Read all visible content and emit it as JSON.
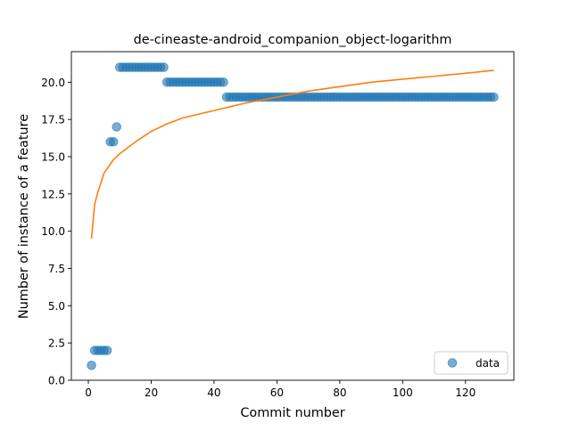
{
  "chart_data": {
    "type": "scatter",
    "title": "de-cineaste-android_companion_object-logarithm",
    "xlabel": "Commit number",
    "ylabel": "Number of instance of a feature",
    "xlim": [
      -5.4,
      135.4
    ],
    "ylim": [
      0,
      22.05
    ],
    "x_ticks": [
      0,
      20,
      40,
      60,
      80,
      100,
      120
    ],
    "x_tick_labels": [
      "0",
      "20",
      "40",
      "60",
      "80",
      "100",
      "120"
    ],
    "y_ticks": [
      0,
      2.5,
      5,
      7.5,
      10,
      12.5,
      15,
      17.5,
      20
    ],
    "y_tick_labels": [
      "0.0",
      "2.5",
      "5.0",
      "7.5",
      "10.0",
      "12.5",
      "15.0",
      "17.5",
      "20.0"
    ],
    "grid": false,
    "legend_position": "lower-right",
    "series": [
      {
        "name": "data",
        "kind": "scatter",
        "color": "#1f77b4",
        "points": [
          [
            1,
            1
          ],
          [
            2,
            2
          ],
          [
            3,
            2
          ],
          [
            4,
            2
          ],
          [
            5,
            2
          ],
          [
            6,
            2
          ],
          [
            7,
            16
          ],
          [
            8,
            16
          ],
          [
            9,
            17
          ],
          [
            10,
            21
          ],
          [
            11,
            21
          ],
          [
            12,
            21
          ],
          [
            13,
            21
          ],
          [
            14,
            21
          ],
          [
            15,
            21
          ],
          [
            16,
            21
          ],
          [
            17,
            21
          ],
          [
            18,
            21
          ],
          [
            19,
            21
          ],
          [
            20,
            21
          ],
          [
            21,
            21
          ],
          [
            22,
            21
          ],
          [
            23,
            21
          ],
          [
            24,
            21
          ],
          [
            25,
            20
          ],
          [
            26,
            20
          ],
          [
            27,
            20
          ],
          [
            28,
            20
          ],
          [
            29,
            20
          ],
          [
            30,
            20
          ],
          [
            31,
            20
          ],
          [
            32,
            20
          ],
          [
            33,
            20
          ],
          [
            34,
            20
          ],
          [
            35,
            20
          ],
          [
            36,
            20
          ],
          [
            37,
            20
          ],
          [
            38,
            20
          ],
          [
            39,
            20
          ],
          [
            40,
            20
          ],
          [
            41,
            20
          ],
          [
            42,
            20
          ],
          [
            43,
            20
          ],
          [
            44,
            19
          ],
          [
            45,
            19
          ],
          [
            46,
            19
          ],
          [
            47,
            19
          ],
          [
            48,
            19
          ],
          [
            49,
            19
          ],
          [
            50,
            19
          ],
          [
            51,
            19
          ],
          [
            52,
            19
          ],
          [
            53,
            19
          ],
          [
            54,
            19
          ],
          [
            55,
            19
          ],
          [
            56,
            19
          ],
          [
            57,
            19
          ],
          [
            58,
            19
          ],
          [
            59,
            19
          ],
          [
            60,
            19
          ],
          [
            61,
            19
          ],
          [
            62,
            19
          ],
          [
            63,
            19
          ],
          [
            64,
            19
          ],
          [
            65,
            19
          ],
          [
            66,
            19
          ],
          [
            67,
            19
          ],
          [
            68,
            19
          ],
          [
            69,
            19
          ],
          [
            70,
            19
          ],
          [
            71,
            19
          ],
          [
            72,
            19
          ],
          [
            73,
            19
          ],
          [
            74,
            19
          ],
          [
            75,
            19
          ],
          [
            76,
            19
          ],
          [
            77,
            19
          ],
          [
            78,
            19
          ],
          [
            79,
            19
          ],
          [
            80,
            19
          ],
          [
            81,
            19
          ],
          [
            82,
            19
          ],
          [
            83,
            19
          ],
          [
            84,
            19
          ],
          [
            85,
            19
          ],
          [
            86,
            19
          ],
          [
            87,
            19
          ],
          [
            88,
            19
          ],
          [
            89,
            19
          ],
          [
            90,
            19
          ],
          [
            91,
            19
          ],
          [
            92,
            19
          ],
          [
            93,
            19
          ],
          [
            94,
            19
          ],
          [
            95,
            19
          ],
          [
            96,
            19
          ],
          [
            97,
            19
          ],
          [
            98,
            19
          ],
          [
            99,
            19
          ],
          [
            100,
            19
          ],
          [
            101,
            19
          ],
          [
            102,
            19
          ],
          [
            103,
            19
          ],
          [
            104,
            19
          ],
          [
            105,
            19
          ],
          [
            106,
            19
          ],
          [
            107,
            19
          ],
          [
            108,
            19
          ],
          [
            109,
            19
          ],
          [
            110,
            19
          ],
          [
            111,
            19
          ],
          [
            112,
            19
          ],
          [
            113,
            19
          ],
          [
            114,
            19
          ],
          [
            115,
            19
          ],
          [
            116,
            19
          ],
          [
            117,
            19
          ],
          [
            118,
            19
          ],
          [
            119,
            19
          ],
          [
            120,
            19
          ],
          [
            121,
            19
          ],
          [
            122,
            19
          ],
          [
            123,
            19
          ],
          [
            124,
            19
          ],
          [
            125,
            19
          ],
          [
            126,
            19
          ],
          [
            127,
            19
          ],
          [
            128,
            19
          ],
          [
            129,
            19
          ]
        ]
      },
      {
        "kind": "line",
        "color": "#ff7f0e",
        "points": [
          [
            1,
            9.5
          ],
          [
            2,
            11.8
          ],
          [
            3,
            12.6
          ],
          [
            5,
            13.9
          ],
          [
            8,
            14.8
          ],
          [
            10,
            15.2
          ],
          [
            15,
            16.0
          ],
          [
            20,
            16.7
          ],
          [
            25,
            17.2
          ],
          [
            30,
            17.6
          ],
          [
            40,
            18.1
          ],
          [
            50,
            18.6
          ],
          [
            60,
            19.0
          ],
          [
            70,
            19.4
          ],
          [
            80,
            19.7
          ],
          [
            90,
            20.0
          ],
          [
            100,
            20.2
          ],
          [
            110,
            20.4
          ],
          [
            120,
            20.6
          ],
          [
            129,
            20.8
          ]
        ]
      }
    ]
  }
}
